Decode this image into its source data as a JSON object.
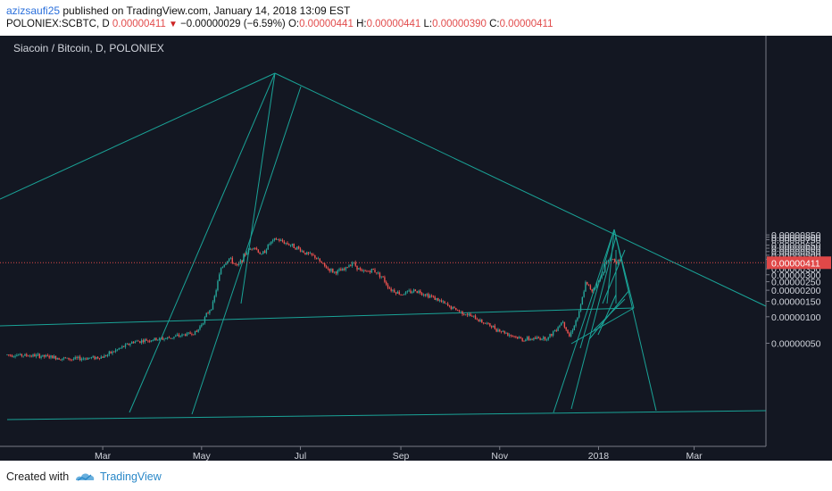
{
  "header": {
    "author": "azizsaufi25",
    "published_text": " published on TradingView.com, January 14, 2018 13:09 EST",
    "symbol": "POLONIEX:SCBTC, D",
    "last": "0.00000411",
    "change": "−0.00000029 (−6.59%)",
    "o_label": "O:",
    "o": "0.00000441",
    "h_label": "H:",
    "h": "0.00000441",
    "l_label": "L:",
    "l": "0.00000390",
    "c_label": "C:",
    "c": "0.00000411"
  },
  "footer": {
    "created_with": "Created with",
    "brand": "TradingView"
  },
  "colors": {
    "background": "#131722",
    "up": "#26a69a",
    "down": "#ef5350",
    "line": "#1aa397",
    "price_line": "#e04848"
  },
  "chart_data": {
    "type": "candlestick",
    "title": "Siacoin / Bitcoin, D, POLONIEX",
    "y_ticks": [
      "0.00000850",
      "0.00000800",
      "0.00000750",
      "0.00000650",
      "0.00000600",
      "0.00000550",
      "0.00000500",
      "0.00000450",
      "0.00000350",
      "0.00000300",
      "0.00000250",
      "0.00000200",
      "0.00000150",
      "0.00000100",
      "0.00000050"
    ],
    "last_price_label": "0.00000411",
    "x_ticks": [
      "Mar",
      "May",
      "Jul",
      "Sep",
      "Nov",
      "2018",
      "Mar"
    ],
    "price_path": [
      [
        "2017-01-01",
        3.7e-07
      ],
      [
        "2017-01-20",
        3.6e-07
      ],
      [
        "2017-02-10",
        3.3e-07
      ],
      [
        "2017-03-01",
        3.5e-07
      ],
      [
        "2017-03-20",
        5.2e-07
      ],
      [
        "2017-04-10",
        5.7e-07
      ],
      [
        "2017-04-28",
        6.7e-07
      ],
      [
        "2017-05-08",
        1.4e-06
      ],
      [
        "2017-05-13",
        3.6e-06
      ],
      [
        "2017-05-18",
        4.6e-06
      ],
      [
        "2017-05-23",
        3.7e-06
      ],
      [
        "2017-05-28",
        5.2e-06
      ],
      [
        "2017-06-02",
        6.4e-06
      ],
      [
        "2017-06-07",
        5e-06
      ],
      [
        "2017-06-12",
        6.8e-06
      ],
      [
        "2017-06-16",
        7.6e-06
      ],
      [
        "2017-06-22",
        6.9e-06
      ],
      [
        "2017-06-28",
        6.2e-06
      ],
      [
        "2017-07-04",
        5.3e-06
      ],
      [
        "2017-07-10",
        4.8e-06
      ],
      [
        "2017-07-16",
        3.7e-06
      ],
      [
        "2017-07-22",
        3.2e-06
      ],
      [
        "2017-07-28",
        3.4e-06
      ],
      [
        "2017-08-02",
        4.2e-06
      ],
      [
        "2017-08-08",
        3.2e-06
      ],
      [
        "2017-08-15",
        3.4e-06
      ],
      [
        "2017-08-20",
        2.9e-06
      ],
      [
        "2017-08-25",
        2.1e-06
      ],
      [
        "2017-09-01",
        1.8e-06
      ],
      [
        "2017-09-10",
        2e-06
      ],
      [
        "2017-09-20",
        1.7e-06
      ],
      [
        "2017-10-01",
        1.3e-06
      ],
      [
        "2017-10-15",
        1e-06
      ],
      [
        "2017-11-01",
        7e-07
      ],
      [
        "2017-11-15",
        5.5e-07
      ],
      [
        "2017-12-01",
        5.8e-07
      ],
      [
        "2017-12-10",
        9e-07
      ],
      [
        "2017-12-14",
        6e-07
      ],
      [
        "2017-12-20",
        1.1e-06
      ],
      [
        "2017-12-24",
        2.4e-06
      ],
      [
        "2017-12-28",
        2e-06
      ],
      [
        "2018-01-02",
        2.7e-06
      ],
      [
        "2018-01-05",
        3.9e-06
      ],
      [
        "2018-01-08",
        4.6e-06
      ],
      [
        "2018-01-11",
        4.4e-06
      ],
      [
        "2018-01-14",
        4.11e-06
      ]
    ],
    "grid": false
  }
}
